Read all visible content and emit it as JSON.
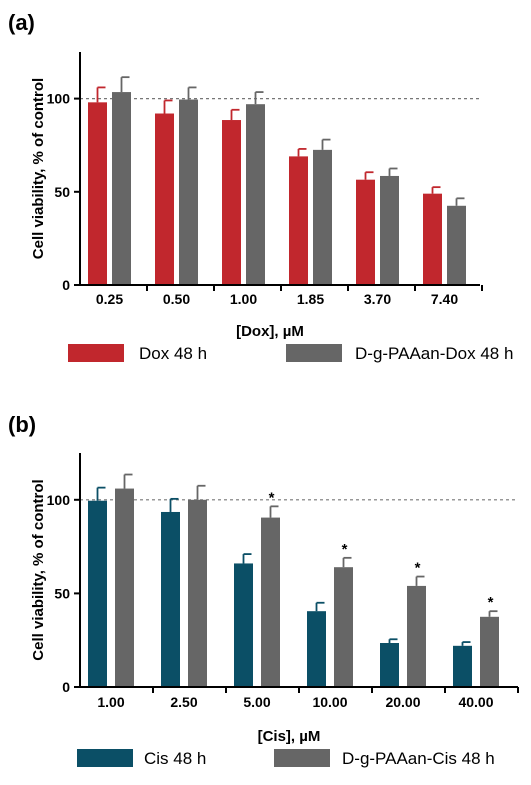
{
  "chart_data": [
    {
      "type": "bar",
      "panel_label": "(a)",
      "categories": [
        "0.25",
        "0.50",
        "1.00",
        "1.85",
        "3.70",
        "7.40"
      ],
      "xlabel": "[Dox], µM",
      "ylabel": "Cell viability, % of control",
      "ylim": [
        0,
        125
      ],
      "yticks": [
        "0",
        "50",
        "100"
      ],
      "reference_line": 100,
      "series": [
        {
          "name": "Dox 48 h",
          "color": "#c1272d",
          "values": [
            98,
            92,
            88.5,
            69,
            56.5,
            49
          ],
          "errors": [
            8,
            7,
            5.5,
            4,
            4,
            3.5
          ]
        },
        {
          "name": "D-g-PAAan-Dox 48 h",
          "color": "#666666",
          "values": [
            103.5,
            99.5,
            97,
            72.5,
            58.5,
            42.5
          ],
          "errors": [
            8,
            6.5,
            6.5,
            5.5,
            4,
            4
          ]
        }
      ],
      "significance": []
    },
    {
      "type": "bar",
      "panel_label": "(b)",
      "categories": [
        "1.00",
        "2.50",
        "5.00",
        "10.00",
        "20.00",
        "40.00"
      ],
      "xlabel": "[Cis], µM",
      "ylabel": "Cell viability, % of control",
      "ylim": [
        0,
        125
      ],
      "yticks": [
        "0",
        "50",
        "100"
      ],
      "reference_line": 100,
      "series": [
        {
          "name": "Cis 48 h",
          "color": "#0b4f66",
          "values": [
            99.5,
            93.5,
            66,
            40.5,
            23.5,
            22
          ],
          "errors": [
            7,
            7,
            5,
            4.5,
            2,
            2
          ]
        },
        {
          "name": "D-g-PAAan-Cis 48 h",
          "color": "#666666",
          "values": [
            106,
            100,
            90.5,
            64,
            54,
            37.5
          ],
          "errors": [
            7.5,
            7.5,
            6,
            5,
            5,
            3
          ]
        }
      ],
      "significance": [
        {
          "category": 2,
          "series": 1,
          "mark": "*"
        },
        {
          "category": 3,
          "series": 1,
          "mark": "*"
        },
        {
          "category": 4,
          "series": 1,
          "mark": "*"
        },
        {
          "category": 5,
          "series": 1,
          "mark": "*"
        }
      ]
    }
  ]
}
